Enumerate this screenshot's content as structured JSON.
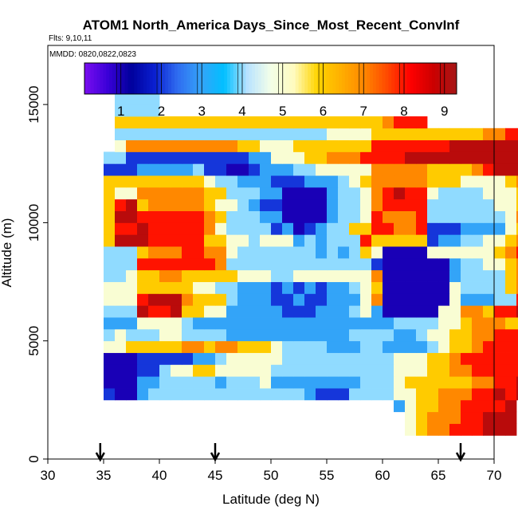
{
  "chart_data": {
    "type": "heatmap",
    "title": "ATOM1 North_America Days_Since_Most_Recent_ConvInf",
    "subtitle_flights": "Flts: 9,10,11",
    "subtitle_dates": "MMDD: 0820,0822,0823",
    "xlabel": "Latitude (deg N)",
    "ylabel": "Altitude (m)",
    "xlim": [
      30,
      70
    ],
    "ylim": [
      0,
      17500
    ],
    "xticks": [
      30,
      35,
      40,
      45,
      50,
      55,
      60,
      65,
      70
    ],
    "yticks": [
      0,
      5000,
      10000,
      15000
    ],
    "colorbar": {
      "min": 0.1,
      "max": 9.3,
      "ticks": [
        1,
        2,
        3,
        4,
        5,
        6,
        7,
        8,
        9
      ],
      "colors": [
        "#7a0ef0",
        "#3a00d8",
        "#00009c",
        "#0a1fd0",
        "#2f6cf0",
        "#35a3f8",
        "#00c0ff",
        "#b8e2ff",
        "#f3ffe8",
        "#fffbbf",
        "#ffd400",
        "#ffb000",
        "#ff8800",
        "#ff4a00",
        "#ff0000",
        "#cc0000",
        "#a51616"
      ]
    },
    "arrows_latitude": [
      34.7,
      45,
      67
    ],
    "bin_width_deg": 1,
    "bin_height_m": 500,
    "lat_start": 35,
    "alt_start": 1000,
    "rows": [
      "...........................5677888999....",
      "...........................5677788999....",
      "..........................35667788889....",
      "21134444444444444432224444556677788989...",
      "1113344444344453333333344456666667788989.",
      "1112245566555554444444444455566778888899.",
      "1112222233455555444444444455566788888889.",
      "556666677677666544443334433334566788888..",
      "45444554444333333333334444334556677888...",
      "3335555433333333333333333344445567776678.",
      "4449889665533333222333453111115577688998.",
      "5558999766643332232233357111111533344889.",
      "5556666655443332323233456111111544446788.",
      "4456677666665554455555557111111344446778.",
      "4448888888744444444444442111111344556788.",
      "4446777887754444444343465111155555567889.",
      "6999888886655455534344486666623344556788.",
      "6889888887544442312344668877822233335678.",
      "6998888887644433111134458777844444445778.",
      "6896777776554322111134457888844444455688.",
      "6557777776644433111134457898854444555689.",
      "6666666665443332223334567777766655556788.",
      "2223333342211233344555557777766667899999.",
      "4422222222222335556677788889999999999999.",
      ".5777777777766555666666688888889999999999",
      ".4444444444444444444555566666666667788888.",
      ".6666666666666666666666667888......",
      ".4444........",
      ".4444........"
    ]
  }
}
